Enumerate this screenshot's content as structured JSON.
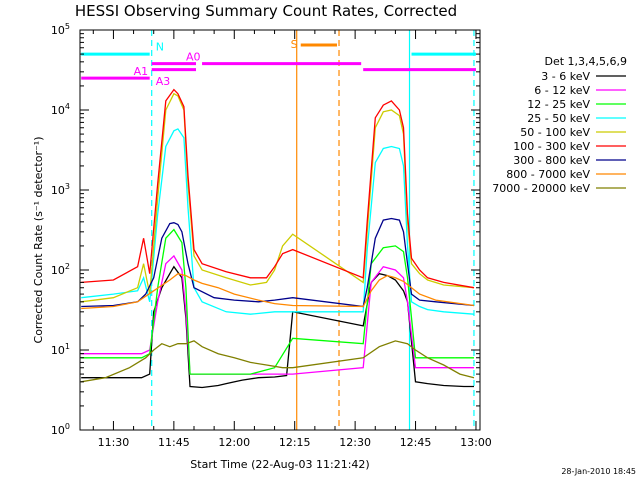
{
  "chart_data": {
    "type": "line",
    "title": "HESSI Observing Summary Count Rates, Corrected",
    "xlabel": "Start Time (22-Aug-03 11:21:42)",
    "ylabel": "Corrected Count Rate (s⁻¹ detector⁻¹)",
    "yscale": "log",
    "ylim": [
      1,
      100000
    ],
    "xlim_minutes_after_11_00": [
      21.7,
      121
    ],
    "x_ticks": [
      {
        "m": 30,
        "label": "11:30"
      },
      {
        "m": 45,
        "label": "11:45"
      },
      {
        "m": 60,
        "label": "12:00"
      },
      {
        "m": 75,
        "label": "12:15"
      },
      {
        "m": 90,
        "label": "12:30"
      },
      {
        "m": 105,
        "label": "12:45"
      },
      {
        "m": 120,
        "label": "13:00"
      }
    ],
    "y_ticks": [
      {
        "v": 1,
        "base": "10",
        "exp": "0"
      },
      {
        "v": 10,
        "base": "10",
        "exp": "1"
      },
      {
        "v": 100,
        "base": "10",
        "exp": "2"
      },
      {
        "v": 1000,
        "base": "10",
        "exp": "3"
      },
      {
        "v": 10000,
        "base": "10",
        "exp": "4"
      },
      {
        "v": 100000,
        "base": "10",
        "exp": "5"
      }
    ],
    "legend_title": "Det 1,3,4,5,6,9",
    "legend_position": "right",
    "series": [
      {
        "name": "3 - 6 keV",
        "color": "#000000",
        "x": [
          22,
          28,
          33,
          37,
          39,
          40,
          42,
          44,
          45,
          47,
          48,
          49,
          52,
          56,
          58,
          62,
          66,
          70,
          73,
          74.5,
          92,
          94,
          96,
          98,
          100,
          102,
          103,
          105,
          108,
          112,
          117,
          119.5
        ],
        "y": [
          4.5,
          4.5,
          4.5,
          4.5,
          5,
          30,
          60,
          90,
          110,
          80,
          25,
          3.5,
          3.4,
          3.6,
          3.8,
          4.2,
          4.5,
          4.6,
          4.8,
          30,
          20,
          70,
          90,
          85,
          75,
          55,
          40,
          4,
          3.8,
          3.6,
          3.5,
          3.5
        ]
      },
      {
        "name": "6 - 12 keV",
        "color": "#ff00ff",
        "x": [
          22,
          30,
          37,
          39,
          41,
          43,
          45,
          47,
          48,
          49,
          52,
          58,
          64,
          70,
          74.5,
          92,
          94,
          97,
          100,
          102,
          103,
          105,
          108,
          112,
          119.5
        ],
        "y": [
          9,
          9,
          9,
          10,
          40,
          120,
          150,
          100,
          30,
          5,
          5,
          5,
          5,
          5,
          5,
          6,
          70,
          110,
          100,
          80,
          40,
          6,
          6,
          6,
          6
        ]
      },
      {
        "name": "12 - 25 keV",
        "color": "#00ff00",
        "x": [
          22,
          30,
          37,
          39,
          41,
          43,
          45,
          47,
          48,
          49,
          52,
          58,
          64,
          70,
          74.5,
          92,
          94,
          97,
          100,
          102,
          103,
          105,
          108,
          112,
          119.5
        ],
        "y": [
          8,
          8,
          8,
          9,
          60,
          250,
          320,
          220,
          60,
          5,
          5,
          5,
          5,
          6,
          14,
          12,
          120,
          190,
          200,
          170,
          80,
          8,
          8,
          8,
          8
        ]
      },
      {
        "name": "25 - 50 keV",
        "color": "#00ffff",
        "x": [
          22,
          30,
          36,
          37.5,
          39,
          41,
          43,
          45,
          46,
          47.5,
          48.5,
          50,
          52,
          58,
          64,
          70,
          74.5,
          92,
          93,
          95,
          97,
          99,
          101,
          102,
          103,
          104,
          106,
          108,
          112,
          119.5
        ],
        "y": [
          45,
          50,
          55,
          80,
          40,
          500,
          3500,
          5500,
          5800,
          4500,
          600,
          60,
          40,
          30,
          28,
          30,
          30,
          30,
          180,
          2200,
          3300,
          3500,
          3300,
          2000,
          200,
          40,
          35,
          32,
          30,
          28
        ]
      },
      {
        "name": "50 - 100 keV",
        "color": "#cccc00",
        "x": [
          22,
          30,
          36,
          37.5,
          39,
          41,
          43,
          45,
          46,
          47.5,
          48.5,
          50,
          52,
          58,
          64,
          68,
          70,
          72,
          74.5,
          92,
          93,
          95,
          97,
          99,
          101,
          102,
          103,
          104,
          106,
          108,
          112,
          119.5
        ],
        "y": [
          40,
          45,
          60,
          120,
          50,
          800,
          10000,
          16000,
          15000,
          10000,
          1200,
          150,
          100,
          80,
          65,
          70,
          100,
          200,
          280,
          70,
          300,
          6000,
          9500,
          10000,
          8500,
          5000,
          400,
          120,
          90,
          75,
          65,
          60
        ]
      },
      {
        "name": "100 - 300 keV",
        "color": "#ff0000",
        "x": [
          22,
          30,
          36,
          37.5,
          39,
          41,
          43,
          45,
          46,
          47.5,
          48.5,
          50,
          52,
          58,
          64,
          68,
          70,
          72,
          74.5,
          92,
          93,
          95,
          97,
          99,
          101,
          102,
          103,
          104,
          106,
          108,
          112,
          119.5
        ],
        "y": [
          70,
          75,
          110,
          250,
          90,
          1200,
          13000,
          18000,
          16000,
          11000,
          1500,
          180,
          120,
          95,
          80,
          80,
          110,
          160,
          180,
          80,
          400,
          8000,
          11500,
          13000,
          10000,
          6000,
          500,
          140,
          100,
          80,
          70,
          60
        ]
      },
      {
        "name": "300 - 800 keV",
        "color": "#00008b",
        "x": [
          22,
          30,
          36,
          38,
          40,
          42,
          44,
          45,
          46,
          47,
          48.5,
          50,
          55,
          60,
          66,
          70,
          74.5,
          92,
          93,
          95,
          97,
          99,
          101,
          102,
          103,
          104,
          106,
          110,
          119.5
        ],
        "y": [
          35,
          36,
          40,
          50,
          80,
          250,
          380,
          390,
          370,
          300,
          120,
          60,
          45,
          42,
          40,
          42,
          45,
          35,
          60,
          250,
          420,
          440,
          420,
          300,
          120,
          50,
          42,
          40,
          36
        ]
      },
      {
        "name": "800 - 7000 keV",
        "color": "#ff8800",
        "x": [
          22,
          30,
          36,
          40,
          44,
          46,
          48,
          50,
          52,
          56,
          60,
          66,
          70,
          74.5,
          92,
          94,
          96,
          98,
          100,
          102,
          104,
          106,
          110,
          119.5
        ],
        "y": [
          33,
          35,
          40,
          55,
          75,
          90,
          85,
          75,
          68,
          60,
          50,
          42,
          38,
          36,
          35,
          55,
          75,
          85,
          80,
          72,
          60,
          50,
          42,
          36
        ]
      },
      {
        "name": "7000 - 20000 keV",
        "color": "#808000",
        "x": [
          22,
          28,
          34,
          38,
          40,
          42,
          44,
          46,
          48,
          50,
          52,
          56,
          60,
          64,
          68,
          72,
          74.5,
          92,
          96,
          100,
          103,
          105,
          108,
          112,
          116,
          119.5
        ],
        "y": [
          4,
          4.5,
          6,
          8,
          10,
          12,
          11,
          12,
          12,
          13,
          11,
          9,
          8,
          7,
          6.5,
          6,
          6,
          8,
          11,
          13,
          12,
          10,
          8,
          6.5,
          5,
          4.5
        ]
      }
    ],
    "vertical_lines": [
      {
        "m": 39.5,
        "color": "#00ffff",
        "dash": true
      },
      {
        "m": 75.5,
        "color": "#ff8800",
        "dash": false
      },
      {
        "m": 86,
        "color": "#ff8800",
        "dash": true
      },
      {
        "m": 103.5,
        "color": "#00ffff",
        "dash": false
      },
      {
        "m": 119.5,
        "color": "#00ffff",
        "dash": true
      }
    ],
    "flag_bars": [
      {
        "label": "N",
        "color": "#00ffff",
        "y_level": 50000,
        "segments": [
          [
            22,
            39
          ],
          [
            104,
            120
          ]
        ],
        "label_m": 40.5,
        "label_y": 60000
      },
      {
        "label": "A1",
        "color": "#ff00ff",
        "y_level": 25000,
        "segments": [
          [
            22,
            39
          ]
        ],
        "label_m": 35,
        "label_y": 30000
      },
      {
        "label": "A3",
        "color": "#ff00ff",
        "y_level": 25000,
        "segments": [],
        "label_m": 40.5,
        "label_y": 22500
      },
      {
        "label": "A0",
        "color": "#ff00ff",
        "y_level": 38000,
        "segments": [
          [
            39.5,
            50.5
          ],
          [
            52,
            91.5
          ]
        ],
        "label_m": 48,
        "label_y": 45000
      },
      {
        "label": "",
        "color": "#ff00ff",
        "y_level": 32000,
        "segments": [
          [
            39.5,
            50.5
          ],
          [
            92,
            120
          ]
        ],
        "label_m": 0,
        "label_y": 0
      },
      {
        "label": "S",
        "color": "#ff8800",
        "y_level": 65000,
        "segments": [
          [
            76.5,
            85.5
          ]
        ],
        "label_m": 74,
        "label_y": 65000
      }
    ],
    "footer_date": "28-Jan-2010 18:45"
  }
}
